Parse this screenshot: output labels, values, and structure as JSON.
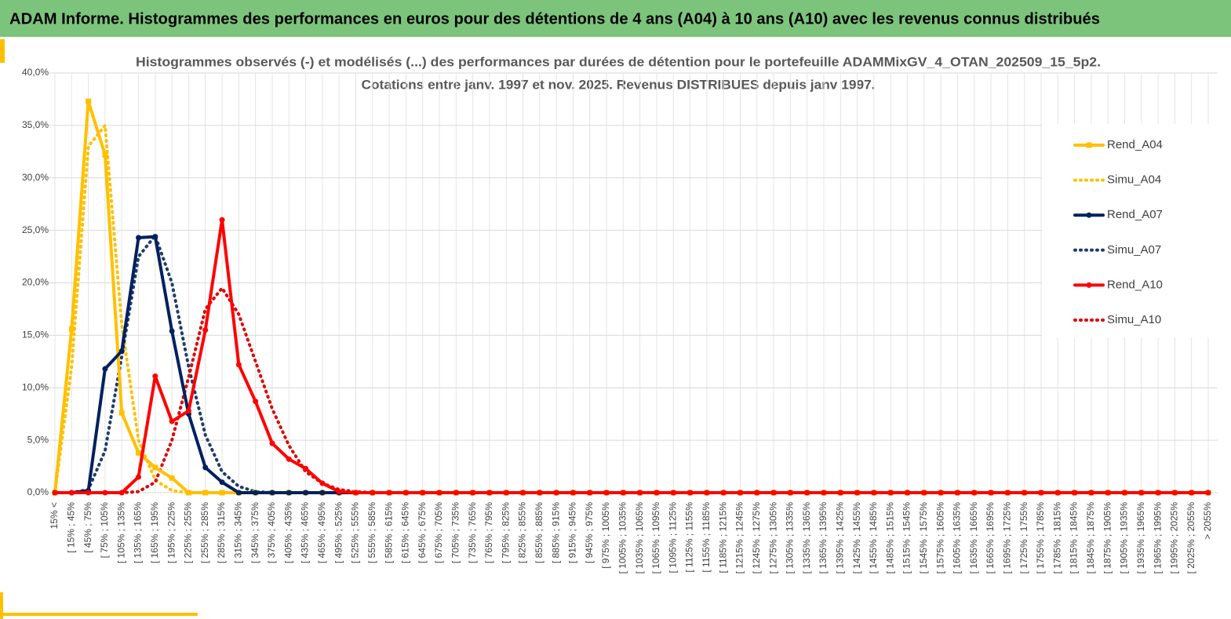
{
  "header": {
    "title": "ADAM Informe. Histogrammes des performances en euros pour des détentions de 4 ans (A04) à 10 ans (A10) avec les revenus connus distribués"
  },
  "chart_data": {
    "type": "line",
    "title": "Histogrammes observés (-) et modélisés (...) des performances par durées de détention pour le portefeuille ADAMMixGV_4_OTAN_202509_15_5p2.",
    "subtitle": "Cotations entre janv. 1997 et nov. 2025. Revenus DISTRIBUES depuis janv 1997.",
    "categories": [
      "15% <",
      "[ 15% ; 45%",
      "[ 45% ; 75%",
      "[ 75% ; 105%",
      "[ 105% ; 135%",
      "[ 135% ; 165%",
      "[ 165% ; 195%",
      "[ 195% ; 225%",
      "[ 225% ; 255%",
      "[ 255% ; 285%",
      "[ 285% ; 315%",
      "[ 315% ; 345%",
      "[ 345% ; 375%",
      "[ 375% ; 405%",
      "[ 405% ; 435%",
      "[ 435% ; 465%",
      "[ 465% ; 495%",
      "[ 495% ; 525%",
      "[ 525% ; 555%",
      "[ 555% ; 585%",
      "[ 585% ; 615%",
      "[ 615% ; 645%",
      "[ 645% ; 675%",
      "[ 675% ; 705%",
      "[ 705% ; 735%",
      "[ 735% ; 765%",
      "[ 765% ; 795%",
      "[ 795% ; 825%",
      "[ 825% ; 855%",
      "[ 855% ; 885%",
      "[ 885% ; 915%",
      "[ 915% ; 945%",
      "[ 945% ; 975%",
      "[ 975% ; 1005%",
      "[ 1005% ; 1035%",
      "[ 1035% ; 1065%",
      "[ 1065% ; 1095%",
      "[ 1095% ; 1125%",
      "[ 1125% ; 1155%",
      "[ 1155% ; 1185%",
      "[ 1185% ; 1215%",
      "[ 1215% ; 1245%",
      "[ 1245% ; 1275%",
      "[ 1275% ; 1305%",
      "[ 1305% ; 1335%",
      "[ 1335% ; 1365%",
      "[ 1365% ; 1395%",
      "[ 1395% ; 1425%",
      "[ 1425% ; 1455%",
      "[ 1455% ; 1485%",
      "[ 1485% ; 1515%",
      "[ 1515% ; 1545%",
      "[ 1545% ; 1575%",
      "[ 1575% ; 1605%",
      "[ 1605% ; 1635%",
      "[ 1635% ; 1665%",
      "[ 1665% ; 1695%",
      "[ 1695% ; 1725%",
      "[ 1725% ; 1755%",
      "[ 1755% ; 1785%",
      "[ 1785% ; 1815%",
      "[ 1815% ; 1845%",
      "[ 1845% ; 1875%",
      "[ 1875% ; 1905%",
      "[ 1905% ; 1935%",
      "[ 1935% ; 1965%",
      "[ 1965% ; 1995%",
      "[ 1995% ; 2025%",
      "[ 2025% ; 2055%",
      "> 2055%"
    ],
    "series": [
      {
        "name": "Rend_A04",
        "color": "#ffc000",
        "style": "solid",
        "marker": "square",
        "values": [
          0,
          15.6,
          37.3,
          32.2,
          7.6,
          3.8,
          2.4,
          1.4,
          0,
          0,
          0,
          0,
          0,
          0,
          0,
          0,
          0,
          0,
          0,
          0,
          0,
          0,
          0,
          0,
          0,
          0,
          0,
          0,
          0,
          0,
          0,
          0,
          0,
          0,
          0,
          0,
          0,
          0,
          0,
          0,
          0,
          0,
          0,
          0,
          0,
          0,
          0,
          0,
          0,
          0,
          0,
          0,
          0,
          0,
          0,
          0,
          0,
          0,
          0,
          0,
          0,
          0,
          0,
          0,
          0,
          0,
          0,
          0,
          0,
          0
        ]
      },
      {
        "name": "Simu_A04",
        "color": "#ffc000",
        "style": "dotted",
        "marker": "none",
        "values": [
          0,
          12,
          33,
          35,
          16,
          5,
          1.2,
          0.2,
          0,
          0,
          0,
          0,
          0,
          0,
          0,
          0,
          0,
          0,
          0,
          0,
          0,
          0,
          0,
          0,
          0,
          0,
          0,
          0,
          0,
          0,
          0,
          0,
          0,
          0,
          0,
          0,
          0,
          0,
          0,
          0,
          0,
          0,
          0,
          0,
          0,
          0,
          0,
          0,
          0,
          0,
          0,
          0,
          0,
          0,
          0,
          0,
          0,
          0,
          0,
          0,
          0,
          0,
          0,
          0,
          0,
          0,
          0,
          0,
          0,
          0
        ]
      },
      {
        "name": "Rend_A07",
        "color": "#002060",
        "style": "solid",
        "marker": "circle",
        "values": [
          0,
          0,
          0.2,
          11.8,
          13.5,
          24.3,
          24.4,
          15.4,
          7.5,
          2.4,
          1.0,
          0,
          0,
          0,
          0,
          0,
          0,
          0,
          0,
          0,
          0,
          0,
          0,
          0,
          0,
          0,
          0,
          0,
          0,
          0,
          0,
          0,
          0,
          0,
          0,
          0,
          0,
          0,
          0,
          0,
          0,
          0,
          0,
          0,
          0,
          0,
          0,
          0,
          0,
          0,
          0,
          0,
          0,
          0,
          0,
          0,
          0,
          0,
          0,
          0,
          0,
          0,
          0,
          0,
          0,
          0,
          0,
          0,
          0,
          0
        ]
      },
      {
        "name": "Simu_A07",
        "color": "#1f3d6b",
        "style": "dotted",
        "marker": "none",
        "values": [
          0,
          0,
          0.3,
          4,
          13,
          22.5,
          24.5,
          20,
          12,
          5.5,
          2,
          0.6,
          0.1,
          0,
          0,
          0,
          0,
          0,
          0,
          0,
          0,
          0,
          0,
          0,
          0,
          0,
          0,
          0,
          0,
          0,
          0,
          0,
          0,
          0,
          0,
          0,
          0,
          0,
          0,
          0,
          0,
          0,
          0,
          0,
          0,
          0,
          0,
          0,
          0,
          0,
          0,
          0,
          0,
          0,
          0,
          0,
          0,
          0,
          0,
          0,
          0,
          0,
          0,
          0,
          0,
          0,
          0,
          0,
          0,
          0
        ]
      },
      {
        "name": "Rend_A10",
        "color": "#ff0000",
        "style": "solid",
        "marker": "circle",
        "values": [
          0,
          0,
          0,
          0,
          0,
          1.5,
          11.1,
          6.8,
          7.8,
          15.5,
          26,
          12.2,
          8.7,
          4.7,
          3.2,
          2.3,
          0.9,
          0.1,
          0,
          0,
          0,
          0,
          0,
          0,
          0,
          0,
          0,
          0,
          0,
          0,
          0,
          0,
          0,
          0,
          0,
          0,
          0,
          0,
          0,
          0,
          0,
          0,
          0,
          0,
          0,
          0,
          0,
          0,
          0,
          0,
          0,
          0,
          0,
          0,
          0,
          0,
          0,
          0,
          0,
          0,
          0,
          0,
          0,
          0,
          0,
          0,
          0,
          0,
          0,
          0
        ]
      },
      {
        "name": "Simu_A10",
        "color": "#e00000",
        "style": "dotted",
        "marker": "none",
        "values": [
          0,
          0,
          0,
          0,
          0,
          0.1,
          1,
          5,
          11,
          17.5,
          19.5,
          17,
          12.5,
          8,
          4.5,
          2,
          0.9,
          0.3,
          0.1,
          0,
          0,
          0,
          0,
          0,
          0,
          0,
          0,
          0,
          0,
          0,
          0,
          0,
          0,
          0,
          0,
          0,
          0,
          0,
          0,
          0,
          0,
          0,
          0,
          0,
          0,
          0,
          0,
          0,
          0,
          0,
          0,
          0,
          0,
          0,
          0,
          0,
          0,
          0,
          0,
          0,
          0,
          0,
          0,
          0,
          0,
          0,
          0,
          0,
          0,
          0
        ]
      }
    ],
    "ylim": [
      0,
      40
    ],
    "yticks": [
      {
        "value": 0,
        "label": "0,0%"
      },
      {
        "value": 5,
        "label": "5,0%"
      },
      {
        "value": 10,
        "label": "10,0%"
      },
      {
        "value": 15,
        "label": "15,0%"
      },
      {
        "value": 20,
        "label": "20,0%"
      },
      {
        "value": 25,
        "label": "25,0%"
      },
      {
        "value": 30,
        "label": "30,0%"
      },
      {
        "value": 35,
        "label": "35,0%"
      },
      {
        "value": 40,
        "label": "40,0%"
      }
    ],
    "grid": true,
    "legend": "right"
  }
}
